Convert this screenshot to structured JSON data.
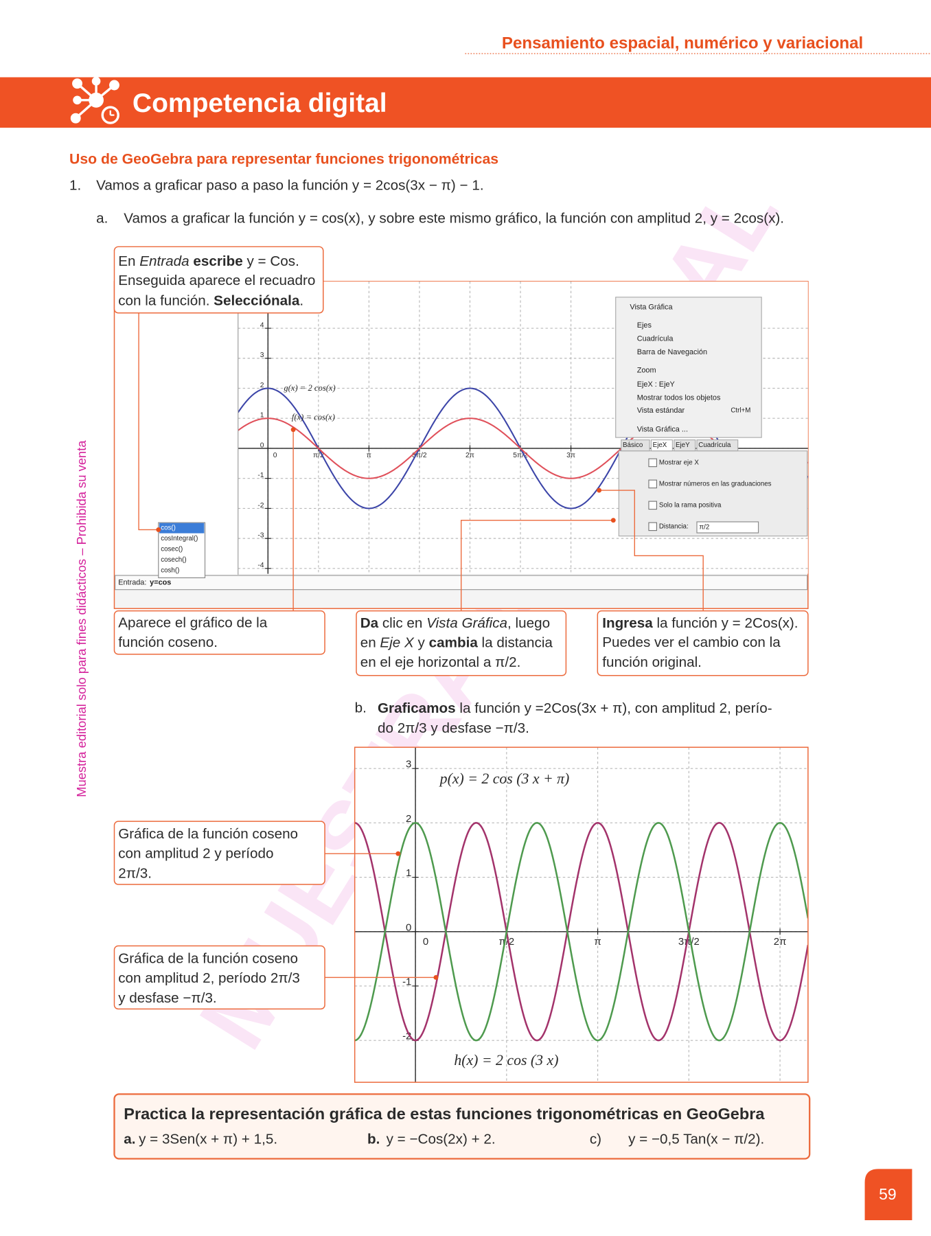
{
  "header": {
    "section": "Pensamiento espacial, numérico y variacional",
    "banner": "Competencia digital"
  },
  "subtitle": "Uso de GeoGebra para representar funciones trigonométricas",
  "step1": {
    "number": "1.",
    "text": "Vamos a graficar paso a paso la función y = 2cos(3x − π) − 1."
  },
  "step_a": {
    "label": "a.",
    "text": "Vamos a graficar la función y = cos(x), y sobre este mismo gráfico, la función con amplitud 2, y = 2cos(x)."
  },
  "callouts": {
    "entrada": [
      [
        "En ",
        "Entrada",
        " ",
        "escribe",
        " y = Cos."
      ],
      [
        "Enseguida aparece el recuadro"
      ],
      [
        "con la función. ",
        "Selecciónala",
        "."
      ]
    ],
    "coseno": [
      [
        "Aparece el gráfico de la"
      ],
      [
        "función coseno."
      ]
    ],
    "vista": [
      [
        "Da",
        " clic en ",
        "Vista Gráfica",
        ", luego"
      ],
      [
        "en ",
        "Eje X",
        " y ",
        "cambia",
        " la distancia"
      ],
      [
        "en el eje horizontal a π/2."
      ]
    ],
    "ingresa": [
      [
        "Ingresa",
        " la función y = 2Cos(x)."
      ],
      [
        "Puedes ver el cambio con la"
      ],
      [
        "función original."
      ]
    ],
    "grafica_h": [
      [
        "Gráfica de la función coseno"
      ],
      [
        "con amplitud 2 y período"
      ],
      [
        "2π/3."
      ]
    ],
    "grafica_p": [
      [
        "Gráfica de la función coseno"
      ],
      [
        "con amplitud 2, período 2π/3"
      ],
      [
        "y desfase −π/3."
      ]
    ]
  },
  "step_b": {
    "label": "b.",
    "lines": [
      [
        "Graficamos",
        " la función y =2Cos(3x + π), con amplitud 2, perío-"
      ],
      [
        "do 2π/3 y desfase −π/3."
      ]
    ]
  },
  "practice": {
    "title": "Practica la representación gráfica de estas funciones trigonométricas en GeoGebra",
    "items": [
      {
        "label": "a.",
        "text": "y = 3Sen(x + π) + 1,5."
      },
      {
        "label": "b.",
        "text": "y = −Cos(2x) + 2."
      },
      {
        "label": "c)",
        "text": "y = −0,5 Tan(x − π/2)."
      }
    ]
  },
  "side_note": "Muestra editorial solo para fines didácticos – Prohibida su venta",
  "watermark": "MUESTRA EDITORIAL",
  "page_number": "59",
  "chart_data": [
    {
      "type": "line",
      "xlim": [
        -0.93,
        16.8
      ],
      "ylim": [
        -4.18,
        5.56
      ],
      "xticks": [
        0,
        {
          "value": 1.5708,
          "label": "π/2"
        },
        {
          "value": 3.1416,
          "label": "π"
        },
        {
          "value": 4.7124,
          "label": "3π/2"
        },
        {
          "value": 6.2832,
          "label": "2π"
        },
        {
          "value": 7.854,
          "label": "5π/2"
        },
        {
          "value": 9.4248,
          "label": "3π"
        }
      ],
      "yticks": [
        -4,
        -3,
        -2,
        -1,
        0,
        1,
        2,
        3,
        4
      ],
      "grid": true,
      "series": [
        {
          "name": "g(x) = 2 cos(x)",
          "color": "#3c45a8",
          "amplitude": 2,
          "frequency": 1,
          "phase": 0
        },
        {
          "name": "f(x) = cos(x)",
          "color": "#e0505a",
          "amplitude": 1,
          "frequency": 1,
          "phase": 0
        }
      ],
      "algebra_input": {
        "label": "Entrada:",
        "value": "y=cos"
      },
      "suggestions": [
        "cos()",
        "cosIntegral()",
        "cosec()",
        "cosech()",
        "cosh()"
      ],
      "menu": {
        "title": "Vista Gráfica",
        "items": [
          "Ejes",
          "Cuadrícula",
          "Barra de Navegación",
          "Zoom",
          "EjeX : EjeY",
          "Mostrar todos los objetos",
          "Vista estándar",
          "Vista Gráfica ..."
        ],
        "shortcut": "Ctrl+M"
      },
      "settings": {
        "tabs": [
          "Básico",
          "EjeX",
          "EjeY",
          "Cuadrícula"
        ],
        "options": [
          "Mostrar eje X",
          "Mostrar números en las graduaciones",
          "Solo la rama positiva",
          "Distancia:"
        ],
        "distance": "π/2"
      }
    },
    {
      "type": "line",
      "xlim": [
        -1.046,
        6.766
      ],
      "ylim": [
        -2.77,
        3.39
      ],
      "xticks": [
        0,
        {
          "value": 1.5708,
          "label": "π/2"
        },
        {
          "value": 3.1416,
          "label": "π"
        },
        {
          "value": 4.7124,
          "label": "3π/2"
        },
        {
          "value": 6.2832,
          "label": "2π"
        }
      ],
      "yticks": [
        -2,
        -1,
        0,
        1,
        2,
        3
      ],
      "grid": true,
      "series": [
        {
          "name": "p(x) = 2 cos (3 x + π)",
          "color": "#a3336b",
          "amplitude": 2,
          "frequency": 3,
          "phase": 3.1416
        },
        {
          "name": "h(x) = 2 cos (3 x)",
          "color": "#4e9a4e",
          "amplitude": 2,
          "frequency": 3,
          "phase": 0
        }
      ]
    }
  ]
}
